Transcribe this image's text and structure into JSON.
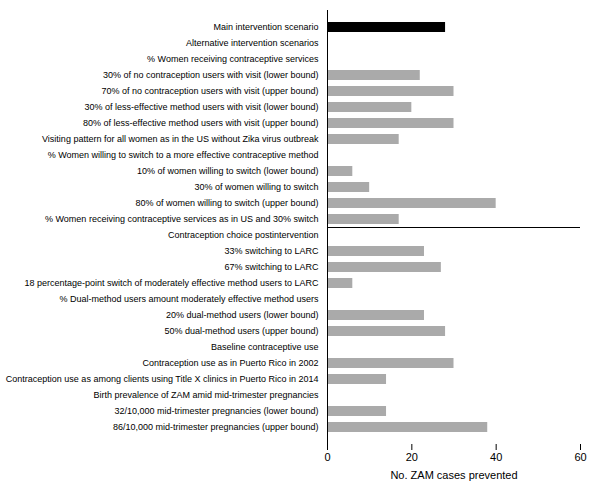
{
  "chart_data": {
    "type": "bar",
    "orientation": "horizontal",
    "xlabel": "No. ZAM cases prevented",
    "categories": [
      "Main intervention scenario",
      "Alternative intervention scenarios",
      "% Women receiving contraceptive services",
      "30% of no contraception users with visit (lower bound)",
      "70% of no contraception users with visit (upper bound)",
      "30% of less-effective method users with visit (lower bound)",
      "80% of less-effective method users with visit (upper bound)",
      "Visiting pattern for all women as in the US without Zika virus outbreak",
      "% Women willing to switch to a more effective contraceptive method",
      "10% of women willing to switch (lower bound)",
      "30% of women willing to switch",
      "80% of women willing to switch (upper bound)",
      "% Women receiving contraceptive services as in US and 30% switch",
      "Contraception choice postintervention",
      "33% switching to LARC",
      "67% switching to LARC",
      "18 percentage-point switch of moderately effective method users to LARC",
      "% Dual-method users amount moderately effective method users",
      "20% dual-method users (lower bound)",
      "50% dual-method users (upper bound)",
      "Baseline contraceptive use",
      "Contraception use as in Puerto Rico in 2002",
      "Contraception use as among clients using Title X clinics in Puerto Rico in 2014",
      "Birth prevalence of ZAM amid mid-trimester pregnancies",
      "32/10,000 mid-trimester pregnancies (lower bound)",
      "86/10,000 mid-trimester pregnancies (upper bound)"
    ],
    "values": [
      28,
      0,
      0,
      22,
      30,
      20,
      30,
      17,
      0,
      6,
      10,
      40,
      17,
      0,
      23,
      27,
      6,
      0,
      23,
      28,
      0,
      30,
      14,
      0,
      14,
      38
    ],
    "colors": [
      "#000000",
      null,
      null,
      "#aaaaaa",
      "#aaaaaa",
      "#aaaaaa",
      "#aaaaaa",
      "#aaaaaa",
      null,
      "#aaaaaa",
      "#aaaaaa",
      "#aaaaaa",
      "#aaaaaa",
      null,
      "#aaaaaa",
      "#aaaaaa",
      "#aaaaaa",
      null,
      "#aaaaaa",
      "#aaaaaa",
      null,
      "#aaaaaa",
      "#aaaaaa",
      null,
      "#aaaaaa",
      "#aaaaaa"
    ],
    "xlim": [
      0,
      60
    ],
    "xticks": [
      0,
      20,
      40,
      60
    ]
  }
}
